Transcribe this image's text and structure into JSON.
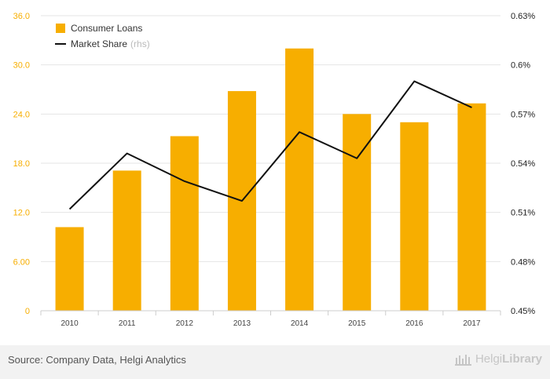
{
  "chart_data": {
    "type": "bar",
    "categories": [
      "2010",
      "2011",
      "2012",
      "2013",
      "2014",
      "2015",
      "2016",
      "2017"
    ],
    "series": [
      {
        "name": "Consumer Loans",
        "kind": "bar",
        "axis": "left",
        "values": [
          10.2,
          17.1,
          21.3,
          26.8,
          32.0,
          24.0,
          23.0,
          25.3
        ]
      },
      {
        "name": "Market Share",
        "axis_note": "(rhs)",
        "kind": "line",
        "axis": "right",
        "values": [
          0.512,
          0.546,
          0.529,
          0.517,
          0.559,
          0.543,
          0.59,
          0.574
        ]
      }
    ],
    "y_left": {
      "min": 0,
      "max": 36,
      "ticks": [
        0,
        6,
        12,
        18,
        24,
        30,
        36
      ],
      "tick_labels": [
        "0",
        "6.00",
        "12.0",
        "18.0",
        "24.0",
        "30.0",
        "36.0"
      ]
    },
    "y_right": {
      "min": 0.45,
      "max": 0.63,
      "ticks": [
        0.45,
        0.48,
        0.51,
        0.54,
        0.57,
        0.6,
        0.63
      ],
      "tick_labels": [
        "0.45%",
        "0.48%",
        "0.51%",
        "0.54%",
        "0.57%",
        "0.6%",
        "0.63%"
      ]
    },
    "legend_position": "top-left",
    "colors": {
      "bar": "#f7ae00",
      "line": "#111111",
      "left_ticks": "#f7ae00",
      "right_ticks": "#222222"
    }
  },
  "footer": {
    "source": "Source: Company Data, Helgi Analytics",
    "brand_light": "Helgi",
    "brand_bold": "Library"
  }
}
